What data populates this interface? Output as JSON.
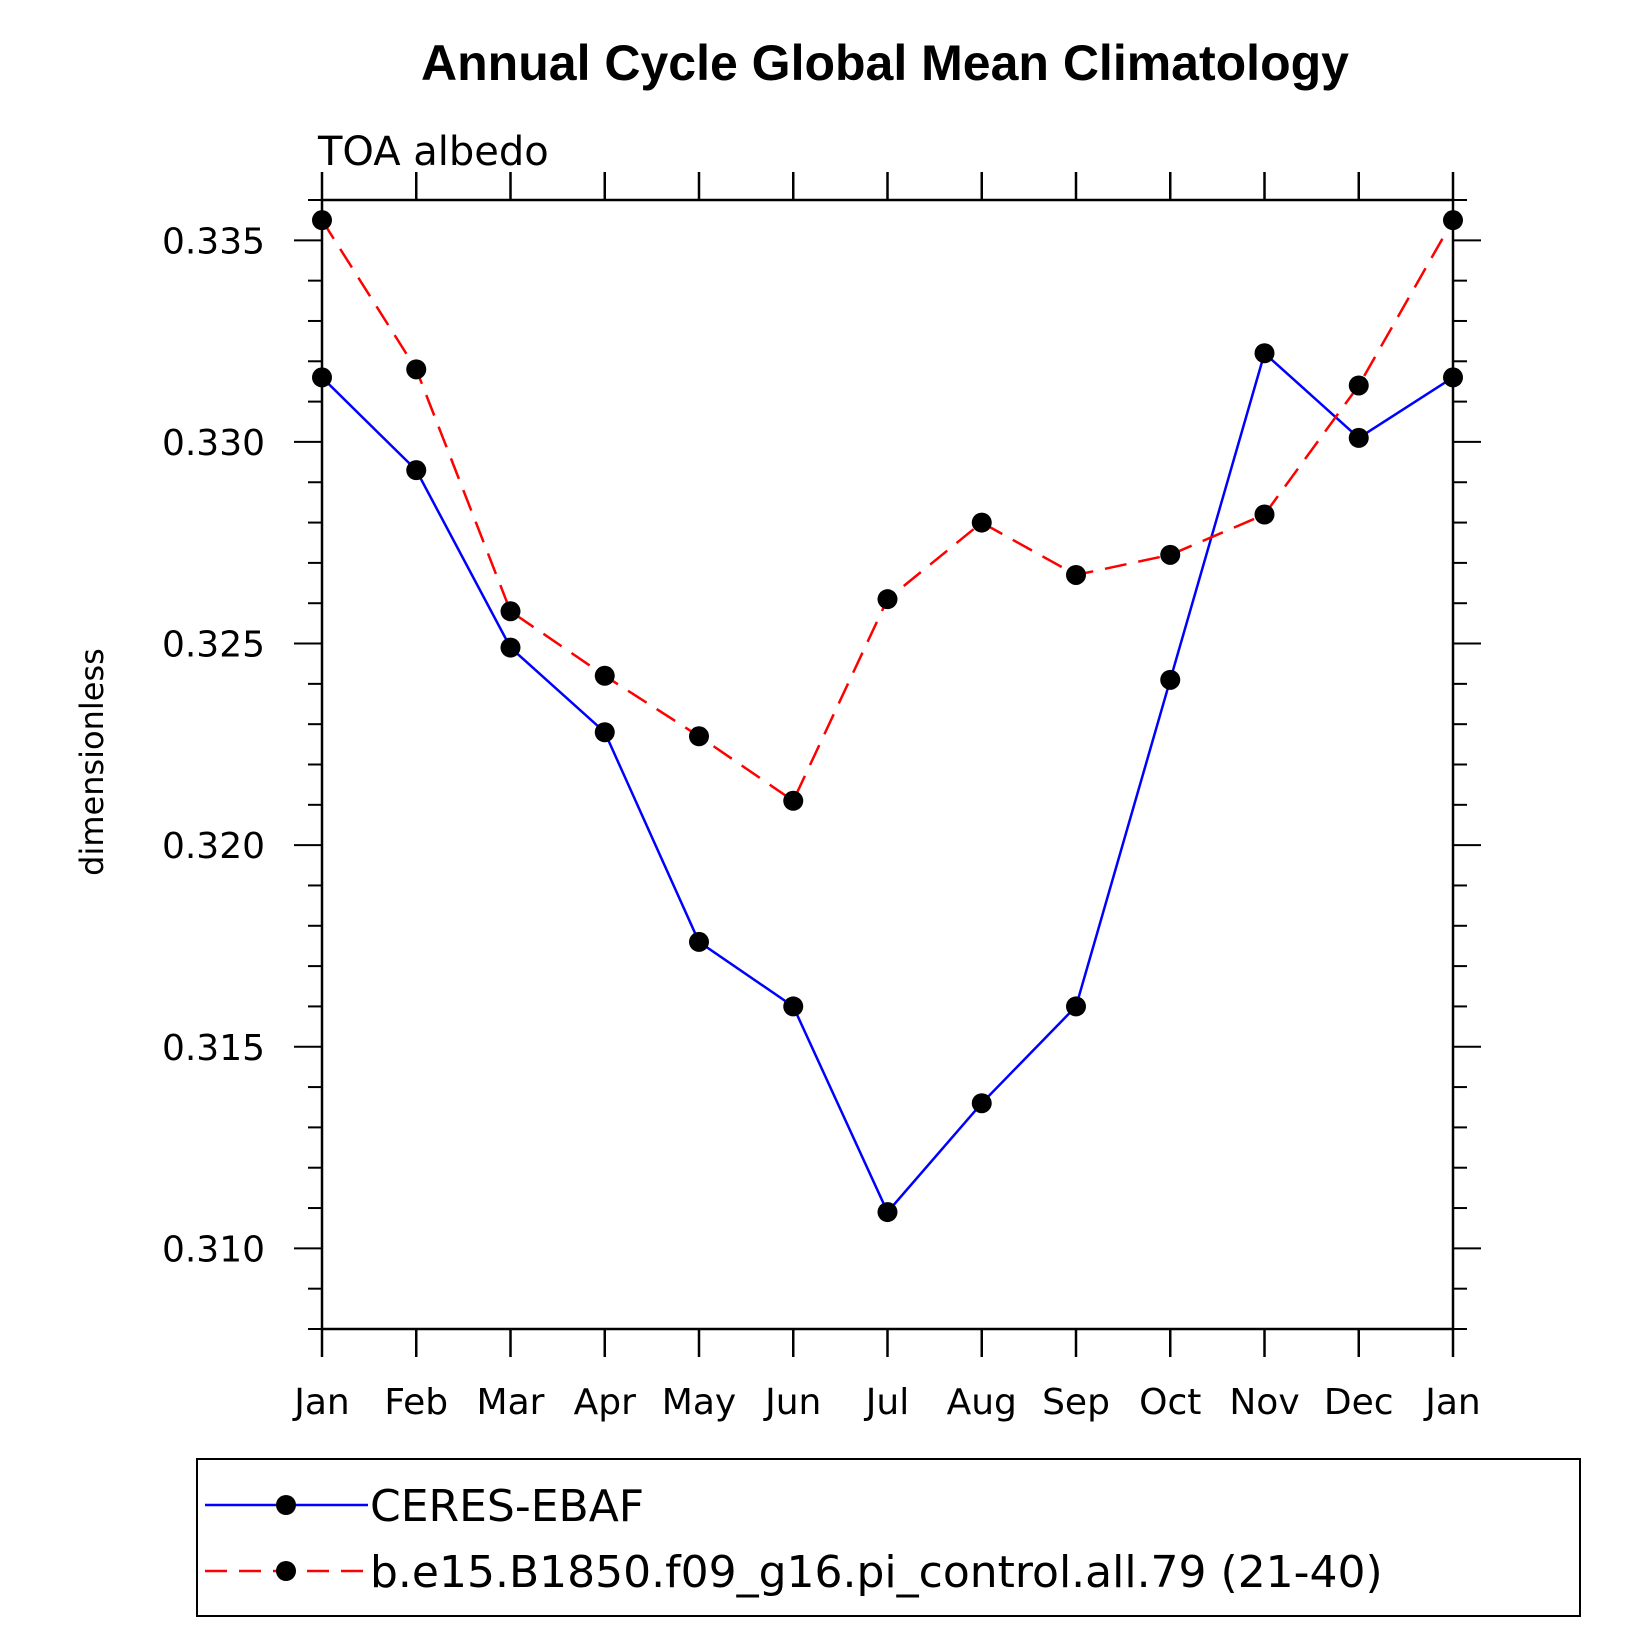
{
  "chart_data": {
    "type": "line",
    "title": "Annual Cycle Global Mean Climatology",
    "subtitle": "TOA albedo",
    "xlabel": "",
    "ylabel": "dimensionless",
    "categories": [
      "Jan",
      "Feb",
      "Mar",
      "Apr",
      "May",
      "Jun",
      "Jul",
      "Aug",
      "Sep",
      "Oct",
      "Nov",
      "Dec",
      "Jan"
    ],
    "ylim": [
      0.308,
      0.336
    ],
    "yticks": [
      0.31,
      0.315,
      0.32,
      0.325,
      0.33,
      0.335
    ],
    "ytick_labels": [
      "0.310",
      "0.315",
      "0.320",
      "0.325",
      "0.330",
      "0.335"
    ],
    "grid": false,
    "legend_position": "bottom",
    "series": [
      {
        "name": "CERES-EBAF",
        "color": "#0000ff",
        "dash": "solid",
        "marker": "circle",
        "values": [
          0.3316,
          0.3293,
          0.3249,
          0.3228,
          0.3176,
          0.316,
          0.3109,
          0.3136,
          0.316,
          0.3241,
          0.3322,
          0.3301,
          0.3316
        ]
      },
      {
        "name": "b.e15.B1850.f09_g16.pi_control.all.79 (21-40)",
        "color": "#ff0000",
        "dash": "dashed",
        "marker": "circle",
        "values": [
          0.3355,
          0.3318,
          0.3258,
          0.3242,
          0.3227,
          0.3211,
          0.3261,
          0.328,
          0.3267,
          0.3272,
          0.3282,
          0.3314,
          0.3355
        ]
      }
    ]
  }
}
